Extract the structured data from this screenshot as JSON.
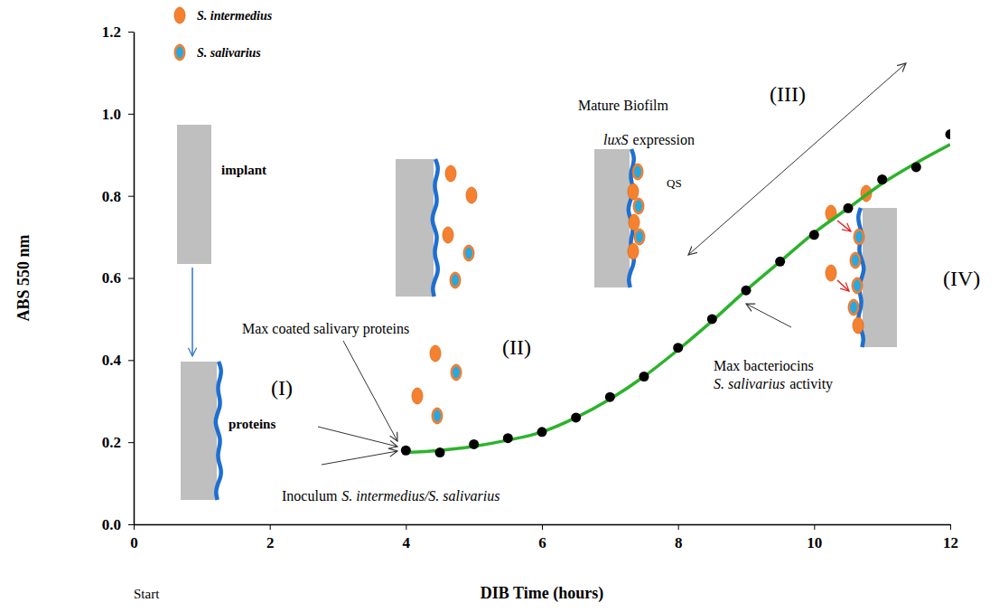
{
  "chart_data": {
    "type": "line",
    "x_label": "DIB Time (hours)",
    "y_label": "ABS 550 nm",
    "x": [
      4,
      4.5,
      5,
      5.5,
      6,
      6.5,
      7,
      7.5,
      8,
      8.5,
      9,
      9.5,
      10,
      10.5,
      11,
      11.5,
      12
    ],
    "series": [
      {
        "type": "line",
        "color": "#2cb32c",
        "line_style": "solid",
        "values": [
          0.175,
          0.18,
          0.19,
          0.205,
          0.225,
          0.26,
          0.305,
          0.36,
          0.425,
          0.495,
          0.57,
          0.64,
          0.71,
          0.77,
          0.83,
          0.88,
          0.925
        ]
      },
      {
        "type": "scatter",
        "color": "#000000",
        "marker": "circle",
        "values": [
          0.18,
          0.175,
          0.195,
          0.21,
          0.225,
          0.26,
          0.31,
          0.36,
          0.43,
          0.5,
          0.57,
          0.64,
          0.705,
          0.77,
          0.84,
          0.87,
          0.95
        ]
      }
    ],
    "xlim": [
      0,
      12
    ],
    "xticks": [
      0,
      2,
      4,
      6,
      8,
      10,
      12
    ],
    "ylim": [
      0,
      1.2
    ],
    "yticks": [
      {
        "value": 0,
        "label": "0.0"
      },
      0.2,
      0.4,
      0.6,
      0.8,
      {
        "value": 1,
        "label": "1.0"
      },
      1.2
    ],
    "grid": false,
    "annotations": [
      "S. intermedius",
      "S. salivarius",
      "implant",
      "proteins",
      "(I)",
      "Max coated salivary proteins",
      "Inoculum",
      "S. intermedius/S. salivarius",
      "(II)",
      "Mature Biofilm",
      "luxS",
      "expression",
      "QS",
      "(III)",
      "(IV)",
      "Max bacteriocins",
      "S. salivarius",
      "activity",
      "Start"
    ]
  }
}
